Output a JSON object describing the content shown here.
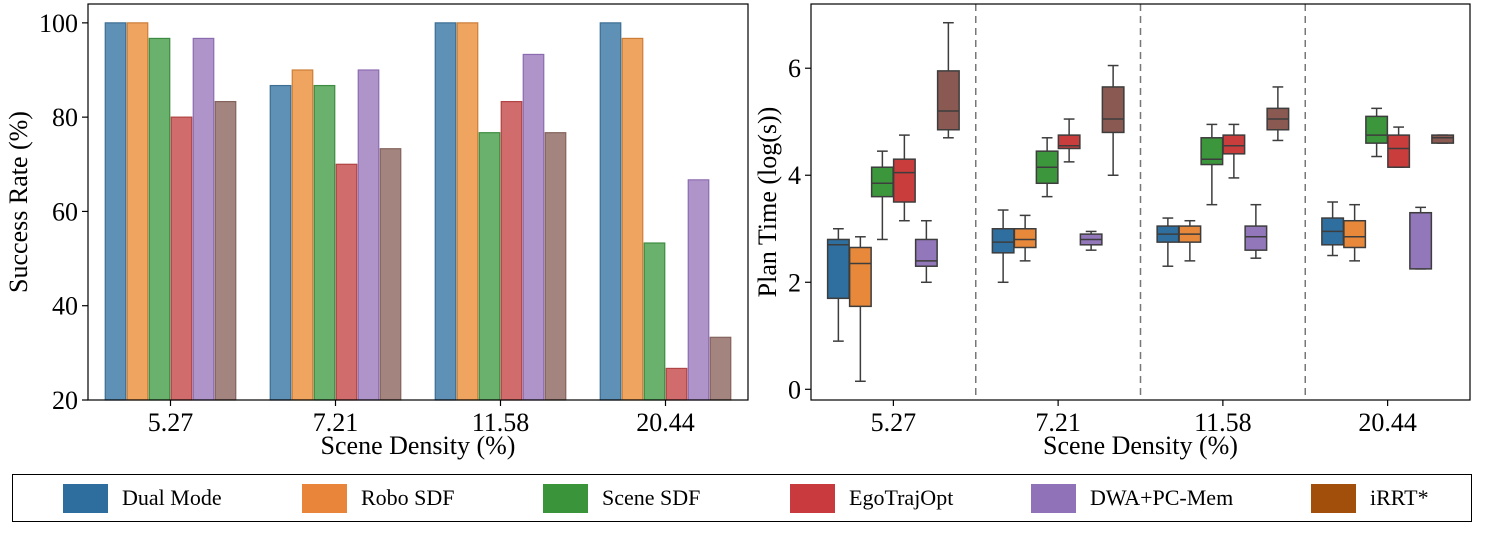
{
  "chart_data": [
    {
      "type": "bar",
      "title": "",
      "xlabel": "Scene Density (%)",
      "ylabel": "Success Rate (%)",
      "ylim": [
        20,
        104
      ],
      "yticks": [
        20,
        40,
        60,
        80,
        100
      ],
      "categories": [
        "5.27",
        "7.21",
        "11.58",
        "20.44"
      ],
      "series": [
        {
          "name": "Dual Mode",
          "color": "#5f91b7",
          "edge": "#3d6f95",
          "values": [
            100,
            86.7,
            100,
            100
          ]
        },
        {
          "name": "Robo SDF",
          "color": "#efa45f",
          "edge": "#cc7e38",
          "values": [
            100,
            90,
            100,
            96.7
          ]
        },
        {
          "name": "Scene SDF",
          "color": "#69b16c",
          "edge": "#3e8c41",
          "values": [
            96.7,
            86.7,
            76.7,
            53.3
          ]
        },
        {
          "name": "EgoTrajOpt",
          "color": "#d16c6c",
          "edge": "#b14444",
          "values": [
            80,
            70,
            83.3,
            26.7
          ]
        },
        {
          "name": "DWA+PC-Mem",
          "color": "#ae94c9",
          "edge": "#8c6cb0",
          "values": [
            96.7,
            90,
            93.3,
            66.7
          ]
        },
        {
          "name": "iRRT*",
          "color": "#a4847e",
          "edge": "#84635c",
          "values": [
            83.3,
            73.3,
            76.7,
            33.3
          ]
        }
      ]
    },
    {
      "type": "box",
      "title": "",
      "xlabel": "Scene Density (%)",
      "ylabel": "Plan Time (log(s))",
      "ylim": [
        -0.2,
        7.2
      ],
      "yticks": [
        0,
        2,
        4,
        6
      ],
      "categories": [
        "5.27",
        "7.21",
        "11.58",
        "20.44"
      ],
      "series": [
        {
          "name": "Dual Mode",
          "color": "#2f6f9f",
          "boxes": [
            [
              0.9,
              1.7,
              2.7,
              2.8,
              3.0
            ],
            [
              2.0,
              2.55,
              2.75,
              3.0,
              3.35
            ],
            [
              2.3,
              2.75,
              2.9,
              3.05,
              3.2
            ],
            [
              2.5,
              2.7,
              2.95,
              3.2,
              3.5
            ]
          ]
        },
        {
          "name": "Robo SDF",
          "color": "#e8883a",
          "boxes": [
            [
              0.15,
              1.55,
              2.35,
              2.65,
              2.85
            ],
            [
              2.4,
              2.65,
              2.8,
              3.0,
              3.25
            ],
            [
              2.4,
              2.75,
              2.9,
              3.05,
              3.15
            ],
            [
              2.4,
              2.65,
              2.85,
              3.15,
              3.45
            ]
          ]
        },
        {
          "name": "Scene SDF",
          "color": "#3c973c",
          "boxes": [
            [
              2.8,
              3.6,
              3.85,
              4.15,
              4.45
            ],
            [
              3.6,
              3.85,
              4.15,
              4.45,
              4.7
            ],
            [
              3.45,
              4.2,
              4.3,
              4.7,
              4.95
            ],
            [
              4.35,
              4.6,
              4.75,
              5.1,
              5.25
            ]
          ]
        },
        {
          "name": "EgoTrajOpt",
          "color": "#c93d3d",
          "boxes": [
            [
              3.15,
              3.5,
              4.05,
              4.3,
              4.75
            ],
            [
              4.25,
              4.5,
              4.55,
              4.75,
              5.05
            ],
            [
              3.95,
              4.4,
              4.55,
              4.75,
              4.95
            ],
            [
              4.15,
              4.15,
              4.5,
              4.75,
              4.9
            ]
          ]
        },
        {
          "name": "DWA+PC-Mem",
          "color": "#9377bb",
          "boxes": [
            [
              2.0,
              2.3,
              2.4,
              2.8,
              3.15
            ],
            [
              2.6,
              2.7,
              2.8,
              2.9,
              2.95
            ],
            [
              2.45,
              2.6,
              2.85,
              3.05,
              3.45
            ],
            [
              2.25,
              2.25,
              3.3,
              3.3,
              3.4
            ]
          ]
        },
        {
          "name": "iRRT*",
          "color": "#8a5a52",
          "boxes": [
            [
              4.7,
              4.85,
              5.2,
              5.95,
              6.85
            ],
            [
              4.0,
              4.8,
              5.05,
              5.65,
              6.05
            ],
            [
              4.65,
              4.85,
              5.05,
              5.25,
              5.65
            ],
            [
              4.6,
              4.6,
              4.7,
              4.75,
              4.75
            ]
          ]
        }
      ]
    }
  ],
  "legend": {
    "items": [
      {
        "label": "Dual Mode",
        "color": "#2e6e9e"
      },
      {
        "label": "Robo SDF",
        "color": "#e8853a"
      },
      {
        "label": "Scene SDF",
        "color": "#3a953a"
      },
      {
        "label": "EgoTrajOpt",
        "color": "#c93a3f"
      },
      {
        "label": "DWA+PC-Mem",
        "color": "#8f72b8"
      },
      {
        "label": "iRRT*",
        "color": "#a14f0a"
      }
    ]
  }
}
